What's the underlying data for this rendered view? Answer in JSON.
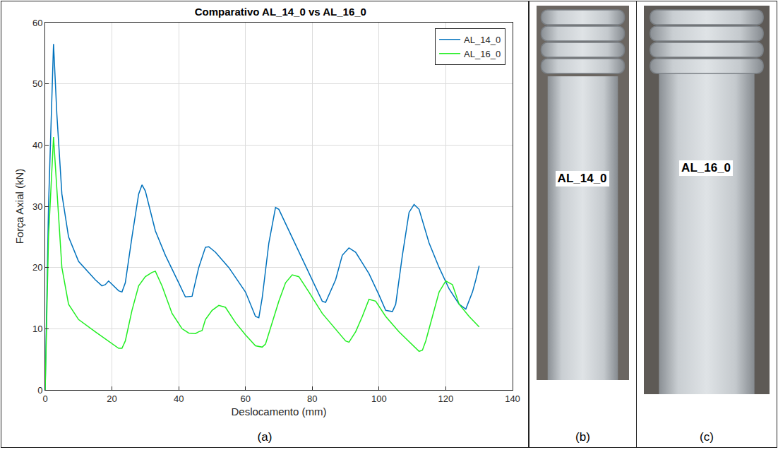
{
  "chart_data": {
    "type": "line",
    "title": "Comparativo AL_14_0 vs AL_16_0",
    "x_label": "Deslocamento (mm)",
    "y_label": "Força Axial (kN)",
    "xlim": [
      0,
      140
    ],
    "xticks": [
      0,
      20,
      40,
      60,
      80,
      100,
      120,
      140
    ],
    "ylim": [
      0,
      60
    ],
    "yticks": [
      0,
      10,
      20,
      30,
      40,
      50,
      60
    ],
    "grid": true,
    "legend": "upper right",
    "series": [
      {
        "name": "AL_14_0",
        "color": "#0072bd",
        "x": [
          0,
          1,
          2.5,
          3.5,
          5,
          7,
          10,
          15,
          17,
          18,
          19,
          20,
          22,
          23,
          24,
          26,
          28,
          29,
          30,
          33,
          36,
          40,
          42,
          44,
          46,
          48,
          49,
          51,
          55,
          60,
          63,
          64,
          65,
          67,
          69,
          70,
          73,
          77,
          80,
          83,
          84,
          85,
          87,
          89,
          91,
          93,
          97,
          100,
          102,
          104,
          105,
          107,
          109,
          110.5,
          112,
          115,
          118,
          121,
          124,
          126,
          127,
          128,
          129,
          130
        ],
        "values": [
          0,
          30,
          56.5,
          45,
          32,
          25,
          21,
          18,
          17,
          17.2,
          17.8,
          17.3,
          16.2,
          16,
          17.5,
          25,
          32,
          33.5,
          32.5,
          26,
          22,
          17.5,
          15.2,
          15.3,
          20,
          23.3,
          23.4,
          22.5,
          20,
          16,
          12,
          11.8,
          15,
          24,
          29.8,
          29.5,
          26,
          21.5,
          18,
          14.5,
          14.3,
          15.5,
          18,
          22,
          23.2,
          22.5,
          19,
          15.5,
          13,
          12.8,
          14,
          22,
          29,
          30.3,
          29.5,
          24,
          20,
          16.5,
          14,
          13.2,
          14.5,
          16,
          18,
          20.3
        ]
      },
      {
        "name": "AL_16_0",
        "color": "#22ee22",
        "x": [
          0,
          1,
          2.5,
          3.5,
          5,
          7,
          10,
          15,
          20,
          22,
          23,
          24,
          26,
          28,
          30,
          32,
          33,
          35,
          38,
          41,
          43,
          45,
          46,
          47,
          48,
          50,
          52,
          54,
          57,
          60,
          63,
          65,
          66,
          68,
          70,
          72,
          74,
          76,
          79,
          83,
          87,
          90,
          91,
          93,
          95,
          97,
          99,
          102,
          106,
          110,
          112,
          113,
          114,
          116,
          118,
          120,
          122,
          124,
          127,
          130
        ],
        "values": [
          0,
          25,
          41.3,
          33,
          20,
          14,
          11.5,
          9.5,
          7.5,
          6.8,
          6.8,
          8,
          13,
          17,
          18.5,
          19.2,
          19.4,
          17,
          12.5,
          10,
          9.3,
          9.2,
          9.5,
          9.7,
          11.5,
          13,
          13.8,
          13.5,
          11,
          9,
          7.2,
          7,
          7.5,
          11,
          14.5,
          17.5,
          18.8,
          18.5,
          16,
          12.5,
          10,
          8,
          7.8,
          9.5,
          12,
          14.8,
          14.5,
          12,
          9.5,
          7.3,
          6.3,
          6.5,
          8,
          12,
          16,
          17.8,
          17.2,
          14,
          12,
          10.3
        ]
      }
    ]
  },
  "figure": {
    "chart_letter": "(a)",
    "photos": [
      {
        "letter": "(b)",
        "label": "AL_14_0"
      },
      {
        "letter": "(c)",
        "label": "AL_16_0"
      }
    ]
  }
}
